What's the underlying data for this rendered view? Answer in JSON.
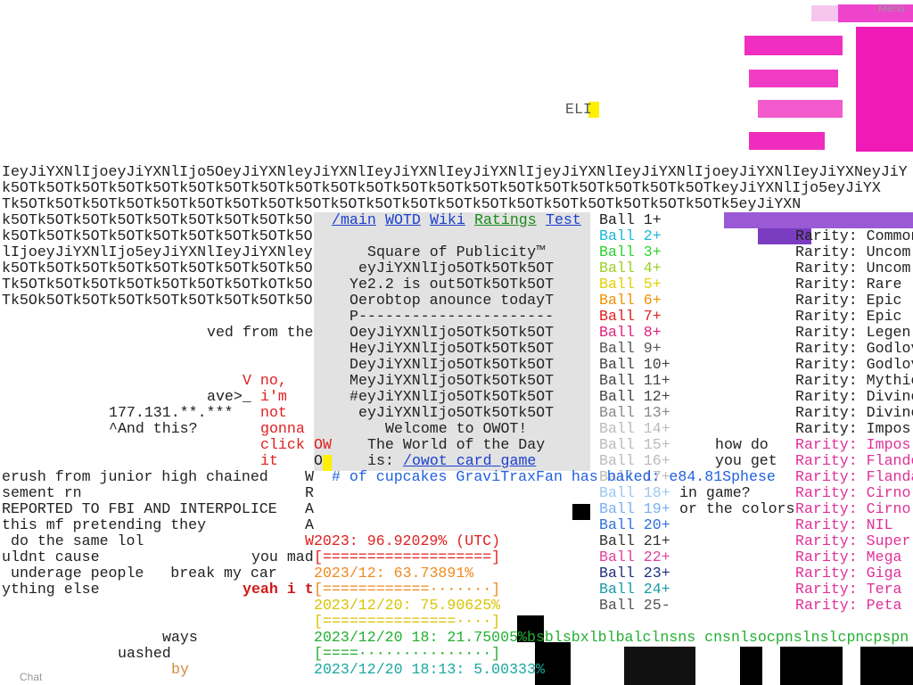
{
  "menu": "Menu",
  "chat": "Chat",
  "cursor_label": "ELI",
  "background_lines": [
    "IeyJiYXNlIjoeyJiYXNlIjo5OeyJiYXNleyJiYXNlIeyJiYXNlIeyJiYXNlIjeyJiYXNlIeyJiYXNlIjoeyJiYXNlIeyJiYXNeyJiY",
    "k5OTk5OTk5OTk5OTk5OTk5OTk5OTk5OTk5OTk5OTk5OTk5OTk5OTk5OTk5OTk5OTk5OTk5OTk5OTk5OTkeyJiYXNlIjo5eyJiYX",
    "Tk5OTk5OTk5OTk5OTk5OTk5OTk5OTk5OTk5OTk5OTk5OTk5OTk5OTk5OTk5OTk5OTk5OTk5OTk5OTk5OTk5eyJiYXN",
    "k5OTk5OTk5OTk5OTk5OTk5OTk5OTk5OTk5O",
    "k5OTk5OTk5OTk5OTk5OTk5OTk5OTk5OTk5O",
    "lIjoeyJiYXNlIjo5eyJiYXNlIeyJiYXNley",
    "k5OTk5OTk5OTk5OTk5OTk5OTk5OTk5OTk5O",
    "Tk5OTk5OTk5OTk5OTk5OTk5OTk5OTkOTk5O",
    "Tk5Ok5OTk5OTk5OTk5OTk5OTk5OTk5OTk5O"
  ],
  "chat_lines": [
    "ved from the",
    "V no,",
    "ave>_",
    "i'm",
    "177.131.**.***",
    "not",
    "^And this?",
    "gonna",
    "click",
    "OW",
    "it",
    "O",
    "erush from junior high chained",
    "W",
    "sement rn",
    "R",
    "REPORTED TO FBI AND INTERPOLICE",
    "A",
    "this mf pretending they",
    "A",
    "do the same lol",
    "uldnt cause",
    "you mad",
    "underage people   break my car",
    "ything else",
    "yeah i t",
    "ways",
    "uashed",
    "by",
    "how do",
    "you get",
    "in game?",
    "or the colors"
  ],
  "panel": {
    "links": [
      "/main",
      "WOTD",
      "Wiki",
      "Ratings",
      "Test"
    ],
    "title": "Square of Publicity™",
    "lines": [
      "eyJiYXNlIjo5OTk5OTk5OT",
      "Ye2.2 is out5OTk5OTk5OT",
      "Oerobtop anounce todayT",
      "P----------------------",
      "OeyJiYXNlIjo5OTk5OTk5OT",
      "HeyJiYXNlIjo5OTk5OTk5OT",
      "DeyJiYXNlIjo5OTk5OTk5OT",
      "MeyJiYXNlIjo5OTk5OTk5OT",
      "#eyJiYXNlIjo5OTk5OTk5OT",
      "eyJiYXNlIjo5OTk5OTk5OT"
    ],
    "welcome": "Welcome to OWOT!",
    "world_of_day": "The World of the Day",
    "is": "is:",
    "world_link": "/owot_card_game"
  },
  "balls": [
    "Ball 1+",
    "Ball 2+",
    "Ball 3+",
    "Ball 4+",
    "Ball 5+",
    "Ball 6+",
    "Ball 7+",
    "Ball 8+",
    "Ball 9+",
    "Ball 10+",
    "Ball 11+",
    "Ball 12+",
    "Ball 13+",
    "Ball 14+",
    "Ball 15+",
    "Ball 16+",
    "Ball 17+",
    "Ball 18+",
    "Ball 19+",
    "Ball 20+",
    "Ball 21+",
    "Ball 22+",
    "Ball 23+",
    "Ball 24+",
    "Ball 25-"
  ],
  "rarities": [
    "Rarity: Common",
    "Rarity: Uncom",
    "Rarity: Uncom",
    "Rarity: Rare",
    "Rarity: Epic",
    "Rarity: Epic",
    "Rarity: Legen",
    "Rarity: Godlov",
    "Rarity: Godlov",
    "Rarity: Mythic",
    "Rarity: Divine",
    "Rarity: Divine",
    "Rarity: Impos",
    "Rarity: Impos",
    "Rarity: Flande",
    "Rarity: Flanda",
    "Rarity: Cirno",
    "Rarity: Cirno",
    "Rarity: NIL",
    "Rarity: Super",
    "Rarity: Mega",
    "Rarity: Giga",
    "Rarity: Tera",
    "Rarity: Peta"
  ],
  "stats": [
    "# of cupcakes GraviTraxFan has baked: e84.81Sphese",
    "W2023: 96.92029% (UTC)",
    "[===================]",
    "2023/12: 63.73891%",
    "[============·······]",
    "2023/12/20: 75.90625%",
    "[===============····]",
    "2023/12/20 18: 21.75005%bsblsbxlblbalclnsns cnsnlsocpnslnslcpncpspn",
    "[====···············]",
    "2023/12/20 18:13: 5.00333%"
  ]
}
